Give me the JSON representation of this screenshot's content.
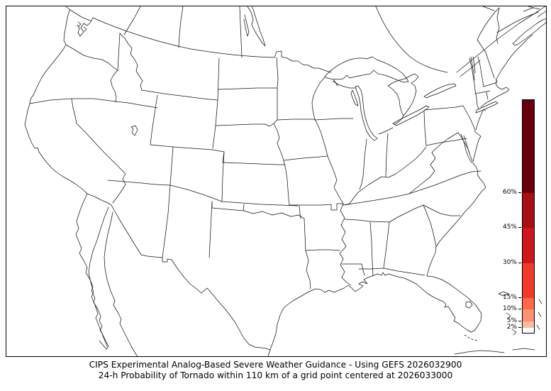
{
  "caption": {
    "line1": "CIPS Experimental Analog-Based Severe Weather Guidance - Using GEFS 2026032900",
    "line2": "24-h Probability of Tornado within 110 km of a grid point centered at 2026033000"
  },
  "chart_data": {
    "type": "map",
    "region": "CONUS with southern Canada, northern Mexico, Bahamas and Cuba coast fragments",
    "map_fill": "none (no probability contours shaded on map)",
    "line_color": "#141414",
    "background_color": "#ffffff",
    "colorbar": {
      "orientation": "vertical",
      "units": "%",
      "range": [
        0,
        100
      ],
      "tick_values": [
        2,
        5,
        10,
        15,
        30,
        45,
        60
      ],
      "tick_labels": [
        "2%",
        "5%",
        "10%",
        "15%",
        "30%",
        "45%",
        "60%"
      ],
      "segments": [
        {
          "from": 0,
          "to": 2,
          "color": "#ffffff"
        },
        {
          "from": 2,
          "to": 5,
          "color": "#fcbba1"
        },
        {
          "from": 5,
          "to": 10,
          "color": "#fc9272"
        },
        {
          "from": 10,
          "to": 15,
          "color": "#fb6a4a"
        },
        {
          "from": 15,
          "to": 30,
          "color": "#ef3b2c"
        },
        {
          "from": 30,
          "to": 45,
          "color": "#cb181d"
        },
        {
          "from": 45,
          "to": 60,
          "color": "#a50f15"
        },
        {
          "from": 60,
          "to": 100,
          "color": "#67000d"
        }
      ]
    }
  }
}
